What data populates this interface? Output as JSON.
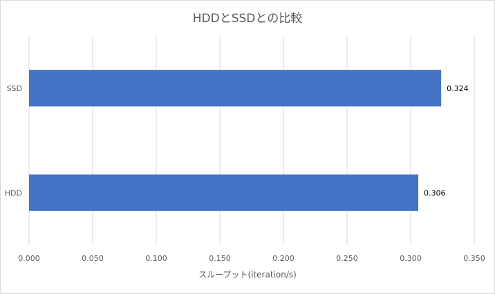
{
  "chart_data": {
    "type": "bar",
    "orientation": "horizontal",
    "title": "HDDとSSDとの比較",
    "xlabel": "スループット(iteration/s)",
    "ylabel": "",
    "categories": [
      "SSD",
      "HDD"
    ],
    "values": [
      0.324,
      0.306
    ],
    "value_labels": [
      "0.324",
      "0.306"
    ],
    "xlim": [
      0,
      0.35
    ],
    "xticks": [
      0,
      0.05,
      0.1,
      0.15,
      0.2,
      0.25,
      0.3,
      0.35
    ],
    "xtick_labels": [
      "0.000",
      "0.050",
      "0.100",
      "0.150",
      "0.200",
      "0.250",
      "0.300",
      "0.350"
    ],
    "grid": "vertical",
    "legend": "none",
    "bar_color": "#4472c4",
    "grid_color": "#d9d9d9",
    "text_color": "#595959",
    "label_color": "#000000"
  }
}
